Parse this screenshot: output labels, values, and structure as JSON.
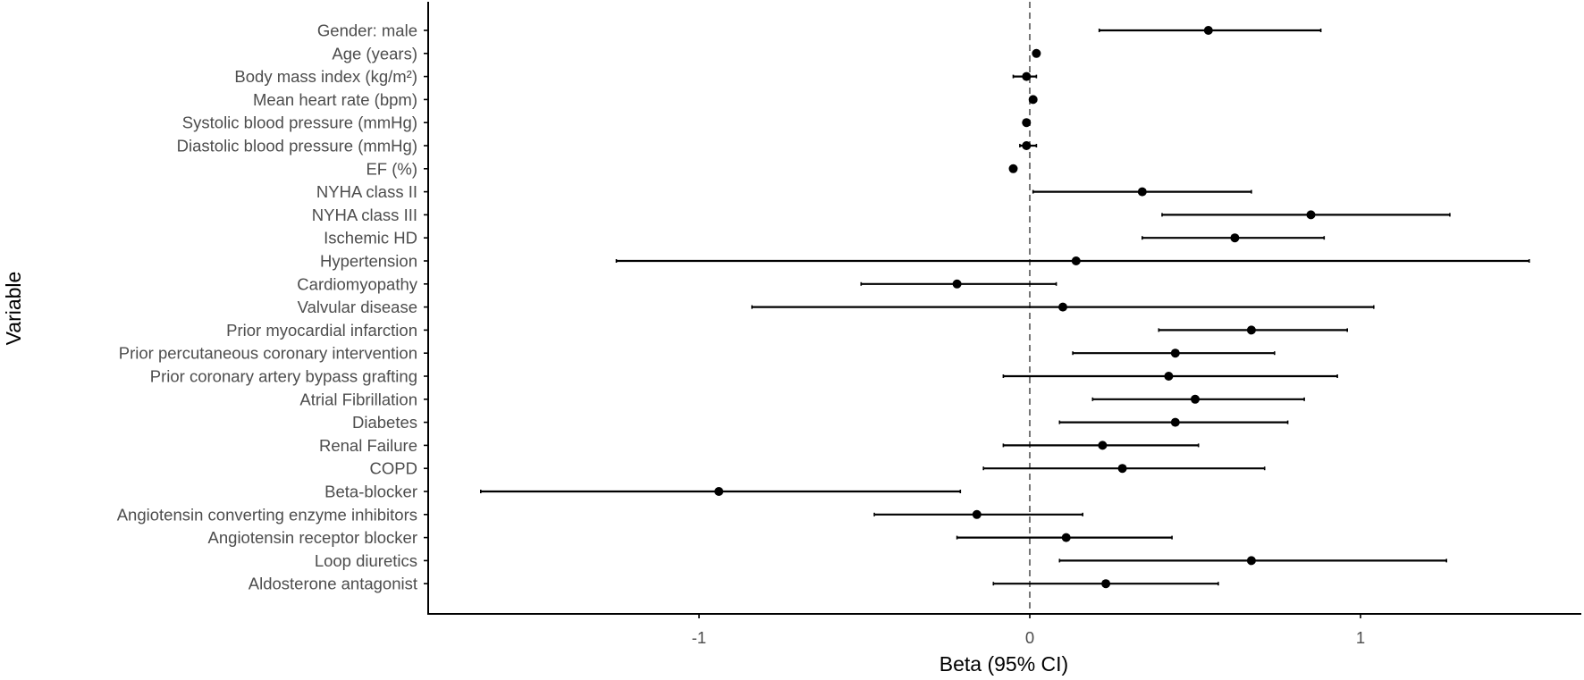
{
  "chart_data": {
    "type": "forest",
    "title": "",
    "xlabel": "Beta (95% CI)",
    "ylabel": "Variable",
    "xlim": [
      -1.82,
      1.65
    ],
    "xticks": [
      -1,
      0,
      1
    ],
    "xtick_labels": [
      "-1",
      "0",
      "1"
    ],
    "reference_line": {
      "x": 0,
      "style": "dashed"
    },
    "grid": false,
    "legend": null,
    "rows": [
      {
        "label": "Gender: male",
        "beta": 0.54,
        "ci_low": 0.21,
        "ci_high": 0.88
      },
      {
        "label": "Age (years)",
        "beta": 0.02,
        "ci_low": 0.01,
        "ci_high": 0.03
      },
      {
        "label": "Body mass index (kg/m²)",
        "beta": -0.01,
        "ci_low": -0.05,
        "ci_high": 0.02
      },
      {
        "label": "Mean heart rate (bpm)",
        "beta": 0.01,
        "ci_low": 0.0,
        "ci_high": 0.02
      },
      {
        "label": "Systolic blood pressure (mmHg)",
        "beta": -0.01,
        "ci_low": -0.01,
        "ci_high": 0.0
      },
      {
        "label": "Diastolic blood pressure (mmHg)",
        "beta": -0.01,
        "ci_low": -0.03,
        "ci_high": 0.02
      },
      {
        "label": "EF (%)",
        "beta": -0.05,
        "ci_low": -0.06,
        "ci_high": -0.04
      },
      {
        "label": "NYHA class II",
        "beta": 0.34,
        "ci_low": 0.01,
        "ci_high": 0.67
      },
      {
        "label": "NYHA class III",
        "beta": 0.85,
        "ci_low": 0.4,
        "ci_high": 1.27
      },
      {
        "label": "Ischemic HD",
        "beta": 0.62,
        "ci_low": 0.34,
        "ci_high": 0.89
      },
      {
        "label": "Hypertension",
        "beta": 0.14,
        "ci_low": -1.25,
        "ci_high": 1.51
      },
      {
        "label": "Cardiomyopathy",
        "beta": -0.22,
        "ci_low": -0.51,
        "ci_high": 0.08
      },
      {
        "label": "Valvular disease",
        "beta": 0.1,
        "ci_low": -0.84,
        "ci_high": 1.04
      },
      {
        "label": "Prior myocardial infarction",
        "beta": 0.67,
        "ci_low": 0.39,
        "ci_high": 0.96
      },
      {
        "label": "Prior percutaneous coronary intervention",
        "beta": 0.44,
        "ci_low": 0.13,
        "ci_high": 0.74
      },
      {
        "label": "Prior coronary artery bypass grafting",
        "beta": 0.42,
        "ci_low": -0.08,
        "ci_high": 0.93
      },
      {
        "label": "Atrial Fibrillation",
        "beta": 0.5,
        "ci_low": 0.19,
        "ci_high": 0.83
      },
      {
        "label": "Diabetes",
        "beta": 0.44,
        "ci_low": 0.09,
        "ci_high": 0.78
      },
      {
        "label": "Renal Failure",
        "beta": 0.22,
        "ci_low": -0.08,
        "ci_high": 0.51
      },
      {
        "label": "COPD",
        "beta": 0.28,
        "ci_low": -0.14,
        "ci_high": 0.71
      },
      {
        "label": "Beta-blocker",
        "beta": -0.94,
        "ci_low": -1.66,
        "ci_high": -0.21
      },
      {
        "label": "Angiotensin converting enzyme inhibitors",
        "beta": -0.16,
        "ci_low": -0.47,
        "ci_high": 0.16
      },
      {
        "label": "Angiotensin receptor blocker",
        "beta": 0.11,
        "ci_low": -0.22,
        "ci_high": 0.43
      },
      {
        "label": "Loop diuretics",
        "beta": 0.67,
        "ci_low": 0.09,
        "ci_high": 1.26
      },
      {
        "label": "Aldosterone antagonist",
        "beta": 0.23,
        "ci_low": -0.11,
        "ci_high": 0.57
      }
    ],
    "colors": {
      "point": "#000000",
      "ci_line": "#000000",
      "axis": "#000000",
      "tick_label": "#4d4d4d",
      "ref_line": "#555555"
    }
  }
}
